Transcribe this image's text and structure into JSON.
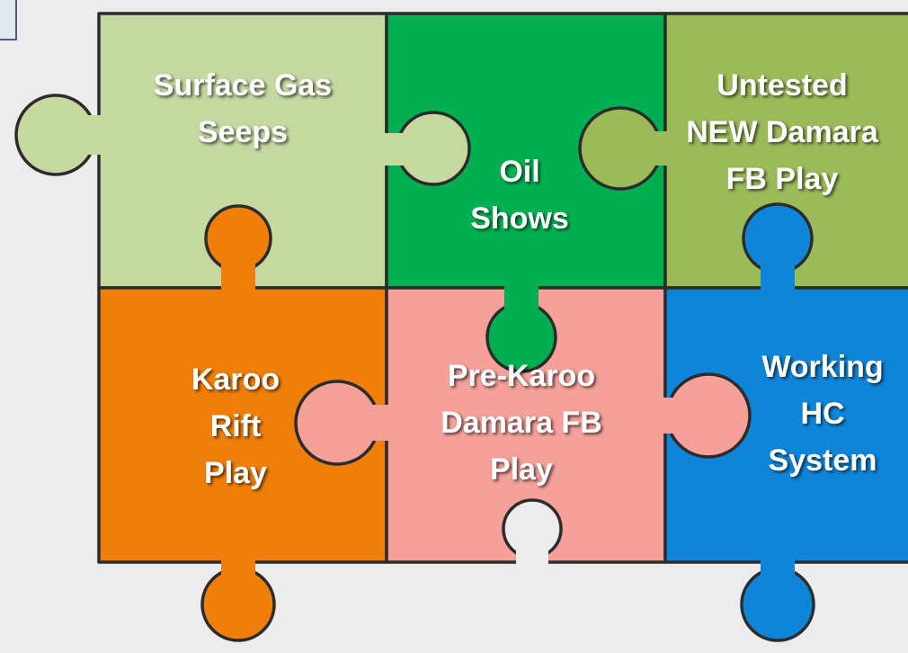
{
  "pieces": [
    {
      "lines": [
        "Surface Gas",
        "Seeps"
      ]
    },
    {
      "lines": [
        "Oil",
        "Shows"
      ]
    },
    {
      "lines": [
        "Untested",
        "NEW Damara",
        "FB Play"
      ]
    },
    {
      "lines": [
        "Karoo",
        "Rift",
        "Play"
      ]
    },
    {
      "lines": [
        "Pre-Karoo",
        "Damara FB",
        "Play"
      ]
    },
    {
      "lines": [
        "Working",
        "HC",
        "System"
      ]
    }
  ]
}
